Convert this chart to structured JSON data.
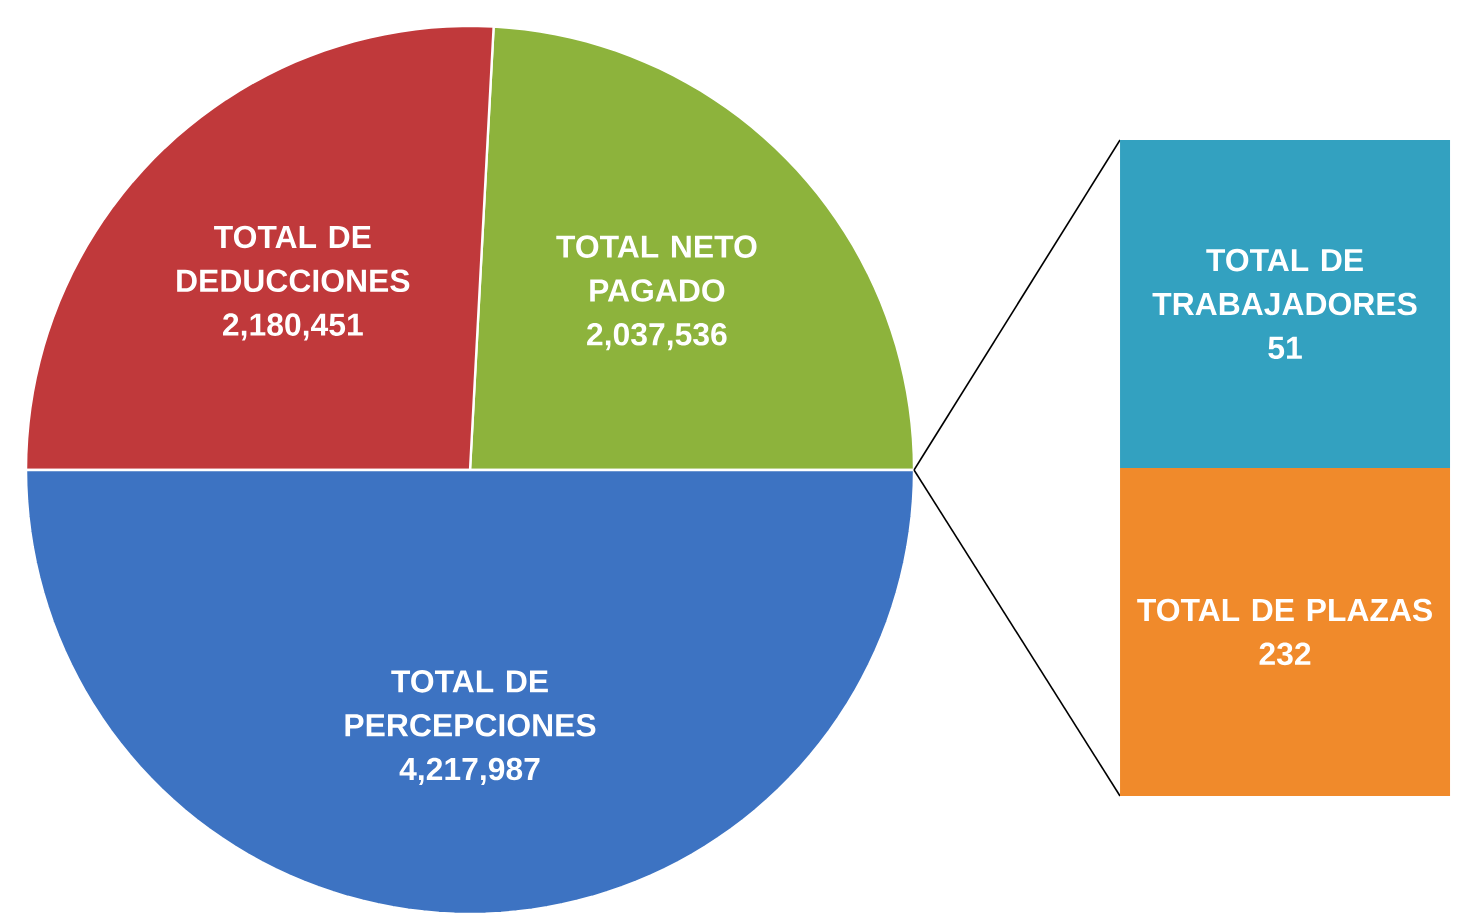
{
  "chart_data": [
    {
      "type": "pie",
      "categories": [
        "TOTAL NETO PAGADO",
        "TOTAL DE DEDUCCIONES",
        "TOTAL DE PERCEPCIONES"
      ],
      "values": [
        2037536,
        2180451,
        4217987
      ],
      "colors": [
        "#8db33c",
        "#c0393b",
        "#3d73c2"
      ],
      "value_labels": [
        "2,037,536",
        "2,180,451",
        "4,217,987"
      ]
    },
    {
      "type": "other",
      "categories": [
        "TOTAL DE TRABAJADORES",
        "TOTAL DE PLAZAS"
      ],
      "values": [
        51,
        232
      ],
      "colors": [
        "#33a1c0",
        "#f08a2b"
      ],
      "data_labels": true
    }
  ]
}
